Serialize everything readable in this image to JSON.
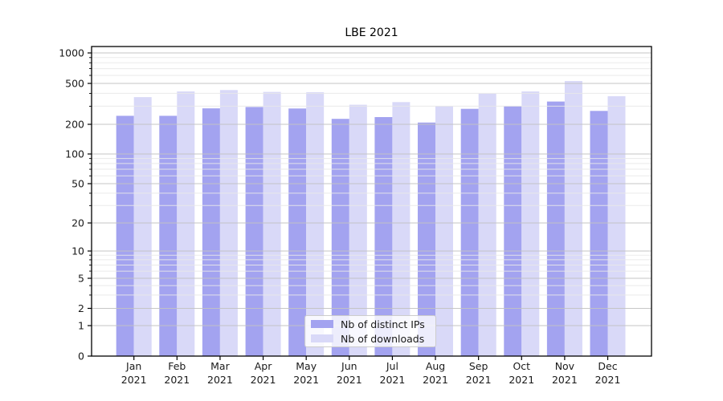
{
  "title": "LBE 2021",
  "legend": {
    "items": [
      {
        "label": "Nb of distinct IPs",
        "color": "#a3a3f0"
      },
      {
        "label": "Nb of downloads",
        "color": "#d9d9f8"
      }
    ]
  },
  "chart_data": {
    "type": "bar",
    "title": "LBE 2021",
    "categories": [
      "Jan 2021",
      "Feb 2021",
      "Mar 2021",
      "Apr 2021",
      "May 2021",
      "Jun 2021",
      "Jul 2021",
      "Aug 2021",
      "Sep 2021",
      "Oct 2021",
      "Nov 2021",
      "Dec 2021"
    ],
    "series": [
      {
        "name": "Nb of distinct IPs",
        "color": "#a3a3f0",
        "values": [
          242,
          242,
          286,
          295,
          285,
          226,
          235,
          208,
          283,
          301,
          333,
          270
        ]
      },
      {
        "name": "Nb of downloads",
        "color": "#d9d9f8",
        "values": [
          368,
          418,
          431,
          413,
          410,
          310,
          329,
          300,
          398,
          418,
          528,
          375
        ]
      }
    ],
    "xlabel": "",
    "ylabel": "",
    "yscale": "symlog",
    "ylim": [
      0,
      1150
    ],
    "y_ticks": [
      0,
      1,
      2,
      5,
      10,
      20,
      50,
      100,
      200,
      500,
      1000
    ],
    "y_minor_ticks": [
      3,
      4,
      6,
      7,
      8,
      9,
      30,
      40,
      60,
      70,
      80,
      90,
      300,
      400,
      600,
      700,
      800,
      900
    ],
    "grid": "both",
    "grid_major_color": "#c3c3c3",
    "grid_minor_color": "#e8e8e8",
    "legend_position": "lower center"
  }
}
